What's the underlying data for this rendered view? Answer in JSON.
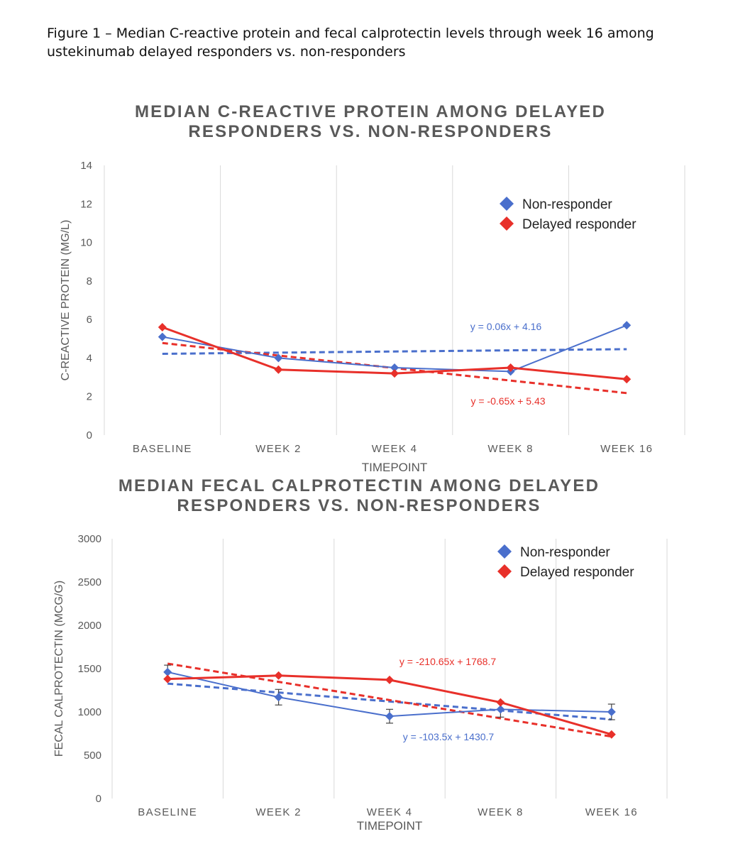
{
  "figure": {
    "caption": "Figure 1 – Median C-reactive protein and fecal calprotectin levels through week 16 among ustekinumab delayed responders vs. non-responders"
  },
  "colors": {
    "non_responder": "#4A6FCC",
    "delayed_responder": "#E8302A",
    "grid": "#D9D9D9",
    "title": "#595959",
    "axis_text": "#595959"
  },
  "chart_data": [
    {
      "type": "line",
      "title_lines": [
        "MEDIAN C-REACTIVE PROTEIN AMONG DELAYED",
        "RESPONDERS VS. NON-RESPONDERS"
      ],
      "xlabel": "TIMEPOINT",
      "ylabel": "C-REACTIVE PROTEIN (MG/L)",
      "categories": [
        "BASELINE",
        "WEEK 2",
        "WEEK 4",
        "WEEK 8",
        "WEEK 16"
      ],
      "ylim": [
        0,
        14
      ],
      "yticks": [
        "0",
        "2",
        "4",
        "6",
        "8",
        "10",
        "12",
        "14"
      ],
      "grid": "vertical",
      "legend_position": "top-right",
      "series": [
        {
          "name": "Non-responder",
          "color_key": "non_responder",
          "values": [
            5.1,
            4.0,
            3.5,
            3.3,
            5.7
          ]
        },
        {
          "name": "Delayed responder",
          "color_key": "delayed_responder",
          "values": [
            5.6,
            3.4,
            3.2,
            3.5,
            2.9
          ]
        }
      ],
      "trendlines": [
        {
          "series": "Non-responder",
          "slope": 0.06,
          "intercept": 4.16,
          "equation": "y = 0.06x + 4.16"
        },
        {
          "series": "Delayed responder",
          "slope": -0.65,
          "intercept": 5.43,
          "equation": "y = -0.65x + 5.43"
        }
      ]
    },
    {
      "type": "line",
      "title_lines": [
        "MEDIAN FECAL CALPROTECTIN AMONG DELAYED",
        "RESPONDERS VS. NON-RESPONDERS"
      ],
      "xlabel": "TIMEPOINT",
      "ylabel": "FECAL CALPROTECTIN (MCG/G)",
      "categories": [
        "BASELINE",
        "WEEK 2",
        "WEEK 4",
        "WEEK 8",
        "WEEK 16"
      ],
      "ylim": [
        0,
        3000
      ],
      "yticks": [
        "0",
        "500",
        "1000",
        "1500",
        "2000",
        "2500",
        "3000"
      ],
      "grid": "vertical",
      "legend_position": "top-right",
      "series": [
        {
          "name": "Non-responder",
          "color_key": "non_responder",
          "values": [
            1460,
            1170,
            950,
            1030,
            1000
          ],
          "error": [
            80,
            90,
            80,
            90,
            90
          ]
        },
        {
          "name": "Delayed responder",
          "color_key": "delayed_responder",
          "values": [
            1380,
            1420,
            1370,
            1110,
            740
          ]
        }
      ],
      "trendlines": [
        {
          "series": "Non-responder",
          "slope": -103.5,
          "intercept": 1430.7,
          "equation": "y = -103.5x + 1430.7"
        },
        {
          "series": "Delayed responder",
          "slope": -210.65,
          "intercept": 1768.7,
          "equation": "y = -210.65x + 1768.7"
        }
      ]
    }
  ]
}
